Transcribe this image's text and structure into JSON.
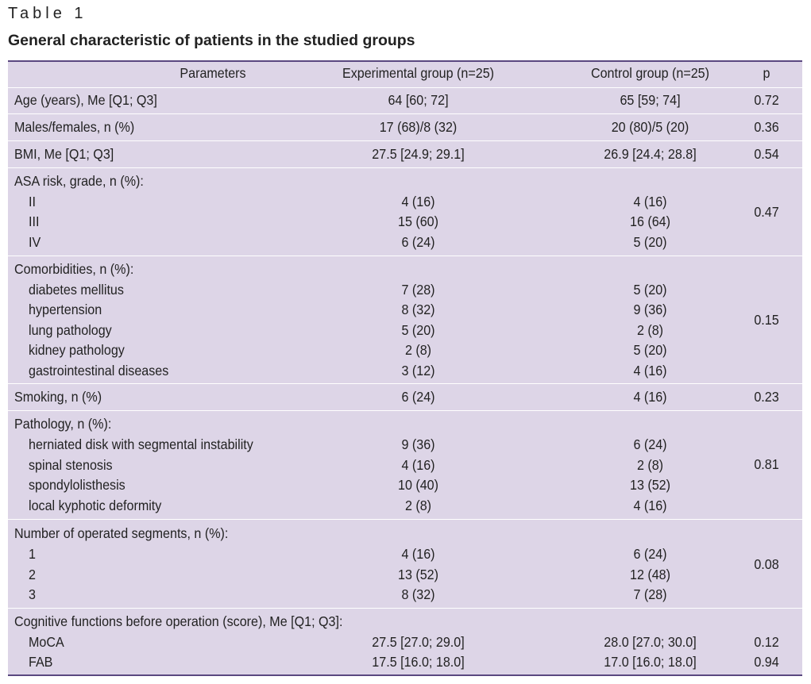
{
  "table_label": "Table 1",
  "caption": "General characteristic of patients in the studied groups",
  "headers": {
    "parameters": "Parameters",
    "experimental": "Experimental group (n=25)",
    "control": "Control group (n=25)",
    "p": "p"
  },
  "rows": {
    "age": {
      "label": "Age (years), Me [Q1; Q3]",
      "exp": "64 [60; 72]",
      "ctl": "65 [59; 74]",
      "p": "0.72"
    },
    "sex": {
      "label": "Males/females, n (%)",
      "exp": "17 (68)/8 (32)",
      "ctl": "20 (80)/5 (20)",
      "p": "0.36"
    },
    "bmi": {
      "label": "BMI, Me [Q1; Q3]",
      "exp": "27.5 [24.9; 29.1]",
      "ctl": "26.9 [24.4; 28.8]",
      "p": "0.54"
    },
    "asa": {
      "label": "ASA risk, grade, n (%):",
      "p": "0.47",
      "items": [
        {
          "label": "II",
          "exp": "4 (16)",
          "ctl": "4 (16)"
        },
        {
          "label": "III",
          "exp": "15 (60)",
          "ctl": "16 (64)"
        },
        {
          "label": "IV",
          "exp": "6 (24)",
          "ctl": "5 (20)"
        }
      ]
    },
    "comorbidities": {
      "label": "Comorbidities, n (%):",
      "p": "0.15",
      "items": [
        {
          "label": "diabetes mellitus",
          "exp": "7 (28)",
          "ctl": "5 (20)"
        },
        {
          "label": "hypertension",
          "exp": "8 (32)",
          "ctl": "9 (36)"
        },
        {
          "label": "lung pathology",
          "exp": "5 (20)",
          "ctl": "2 (8)"
        },
        {
          "label": "kidney pathology",
          "exp": "2 (8)",
          "ctl": "5 (20)"
        },
        {
          "label": "gastrointestinal diseases",
          "exp": "3 (12)",
          "ctl": "4 (16)"
        }
      ]
    },
    "smoking": {
      "label": "Smoking, n (%)",
      "exp": "6 (24)",
      "ctl": "4 (16)",
      "p": "0.23"
    },
    "pathology": {
      "label": "Pathology, n (%):",
      "p": "0.81",
      "items": [
        {
          "label": "herniated disk with segmental instability",
          "exp": "9 (36)",
          "ctl": "6 (24)"
        },
        {
          "label": "spinal stenosis",
          "exp": "4 (16)",
          "ctl": "2 (8)"
        },
        {
          "label": "spondylolisthesis",
          "exp": "10 (40)",
          "ctl": "13 (52)"
        },
        {
          "label": "local kyphotic deformity",
          "exp": "2 (8)",
          "ctl": "4 (16)"
        }
      ]
    },
    "segments": {
      "label": "Number of operated segments, n (%):",
      "p": "0.08",
      "items": [
        {
          "label": "1",
          "exp": "4 (16)",
          "ctl": "6 (24)"
        },
        {
          "label": "2",
          "exp": "13 (52)",
          "ctl": "12 (48)"
        },
        {
          "label": "3",
          "exp": "8 (32)",
          "ctl": "7 (28)"
        }
      ]
    },
    "cognitive": {
      "label": "Cognitive functions before operation (score), Me [Q1; Q3]:",
      "items": [
        {
          "label": "MoCA",
          "exp": "27.5 [27.0; 29.0]",
          "ctl": "28.0 [27.0; 30.0]",
          "p": "0.12"
        },
        {
          "label": "FAB",
          "exp": "17.5 [16.0; 18.0]",
          "ctl": "17.0 [16.0; 18.0]",
          "p": "0.94"
        }
      ]
    }
  }
}
